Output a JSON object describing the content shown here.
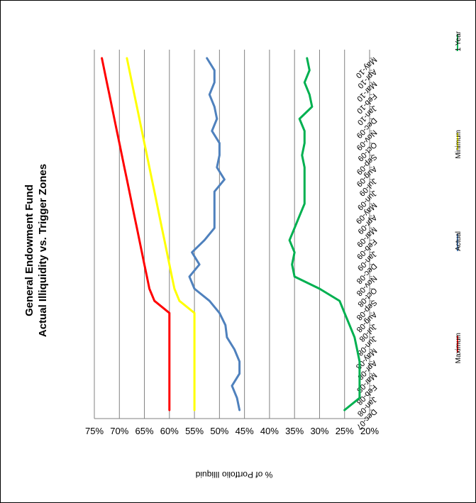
{
  "chart_data": {
    "type": "line",
    "title_line1": "General Endowment Fund",
    "title_line2": "Actual Illiquidity vs. Trigger Zones",
    "ylabel": "% of Portfolio Illiquid",
    "xlabel": "",
    "ylim": [
      20,
      75
    ],
    "y_ticks": [
      75,
      70,
      65,
      60,
      55,
      50,
      45,
      40,
      35,
      30,
      25,
      20
    ],
    "y_tick_labels": [
      "75%",
      "70%",
      "65%",
      "60%",
      "55%",
      "50%",
      "45%",
      "40%",
      "35%",
      "30%",
      "25%",
      "20%"
    ],
    "grid": true,
    "legend_position": "bottom",
    "categories": [
      "Dec-07",
      "Jan-08",
      "Feb-08",
      "Mar-08",
      "Apr-08",
      "May-08",
      "Jun-08",
      "Jul-08",
      "Aug-08",
      "Sep-08",
      "Oct-08",
      "Nov-08",
      "Dec-08",
      "Jan-09",
      "Feb-09",
      "Mar-09",
      "Apr-09",
      "May-09",
      "Jun-09",
      "Jul-09",
      "Aug-09",
      "Sep-09",
      "Oct-09",
      "Nov-09",
      "Dec-09",
      "Jan-10",
      "Feb-10",
      "Mar-10",
      "Apr-10",
      "May-10"
    ],
    "series": [
      {
        "name": "Maximum",
        "color": "#ff0000",
        "values": [
          60,
          60,
          60,
          60,
          60,
          60,
          60,
          60,
          60,
          63,
          64,
          64.5,
          65,
          65.5,
          66,
          66.5,
          67,
          67.5,
          68,
          68.5,
          69,
          69.5,
          70,
          70.5,
          71,
          71.5,
          72,
          72.5,
          73,
          73.5
        ]
      },
      {
        "name": "Actual",
        "color": "#4f81bd",
        "values": [
          46,
          46.5,
          47.5,
          46,
          46,
          47,
          48.5,
          48.8,
          50,
          52,
          55,
          56,
          54,
          55.5,
          53,
          51,
          51,
          51,
          51,
          49,
          50.5,
          50,
          50,
          51.5,
          50.5,
          51,
          52,
          51,
          51,
          52.5
        ]
      },
      {
        "name": "Minimum",
        "color": "#ffff00",
        "values": [
          55,
          55,
          55,
          55,
          55,
          55,
          55,
          55,
          55,
          58,
          59,
          59.5,
          60,
          60.5,
          61,
          61.5,
          62,
          62.5,
          63,
          63.5,
          64,
          64.5,
          65,
          65.5,
          66,
          66.5,
          67,
          67.5,
          68,
          68.5
        ]
      },
      {
        "name": "1 Year",
        "color": "#00b050",
        "values": [
          25,
          22,
          22,
          22,
          22,
          22.5,
          23,
          24,
          25,
          26,
          30,
          35,
          35.5,
          35,
          36,
          35,
          34,
          33,
          33,
          33,
          33,
          33.5,
          33,
          33,
          34,
          31.5,
          32,
          33,
          32,
          32.5
        ]
      }
    ]
  }
}
